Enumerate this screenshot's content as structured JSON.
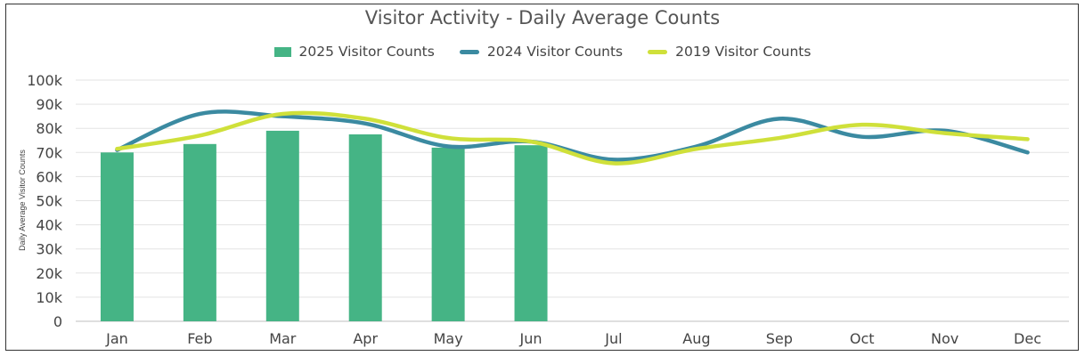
{
  "chart_data": {
    "type": "bar",
    "title": "Visitor Activity - Daily Average Counts",
    "ylabel": "Daily Average Visitor Counts",
    "xlabel": "",
    "categories": [
      "Jan",
      "Feb",
      "Mar",
      "Apr",
      "May",
      "Jun",
      "Jul",
      "Aug",
      "Sep",
      "Oct",
      "Nov",
      "Dec"
    ],
    "ylim": [
      0,
      100000
    ],
    "y_ticks": [
      0,
      10000,
      20000,
      30000,
      40000,
      50000,
      60000,
      70000,
      80000,
      90000,
      100000
    ],
    "y_tick_labels": [
      "0",
      "10k",
      "20k",
      "30k",
      "40k",
      "50k",
      "60k",
      "70k",
      "80k",
      "90k",
      "100k"
    ],
    "grid": true,
    "legend_position": "top",
    "series": [
      {
        "name": "2025 Visitor Counts",
        "kind": "bar",
        "color": "#45b485",
        "values": [
          70000,
          73500,
          79000,
          77500,
          72000,
          73000,
          null,
          null,
          null,
          null,
          null,
          null
        ]
      },
      {
        "name": "2024 Visitor Counts",
        "kind": "line",
        "color": "#3b8aa1",
        "values": [
          71000,
          86000,
          85000,
          82000,
          72500,
          74500,
          67000,
          72500,
          84000,
          76500,
          79000,
          70000
        ]
      },
      {
        "name": "2019 Visitor Counts",
        "kind": "line",
        "color": "#cfe03a",
        "values": [
          71500,
          77000,
          86000,
          84000,
          76000,
          74500,
          65500,
          71500,
          76000,
          81500,
          78000,
          75500
        ]
      }
    ]
  }
}
